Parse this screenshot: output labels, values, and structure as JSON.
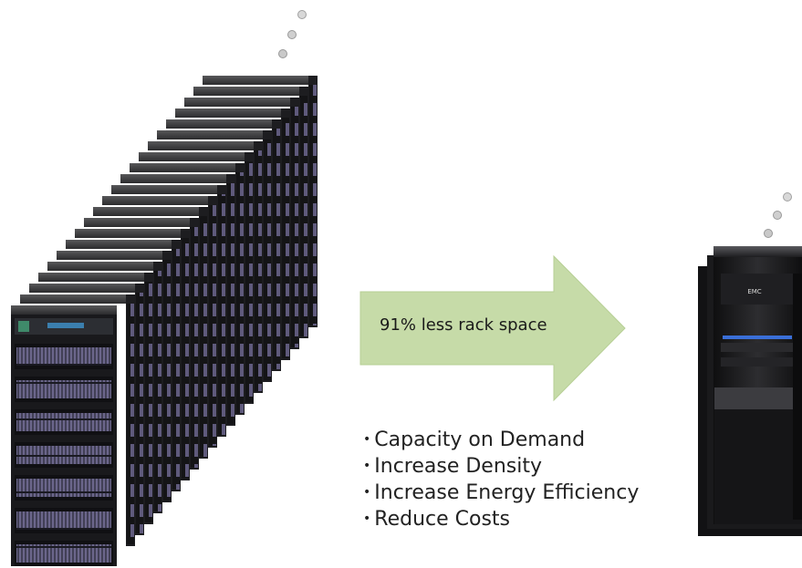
{
  "arrow": {
    "label": "91% less rack space"
  },
  "benefits": [
    "Capacity on Demand",
    "Increase Density",
    "Increase Energy Efficiency",
    "Reduce Costs"
  ],
  "storage_brand": "EMC",
  "colors": {
    "arrow_fill": "#c6dba8",
    "rack_dark": "#1b1b1d",
    "rack_top": "#4a4a4c",
    "drive_purple": "#6a6589",
    "bubble": "#a9a9a9",
    "led_blue": "#3a6fd8"
  }
}
